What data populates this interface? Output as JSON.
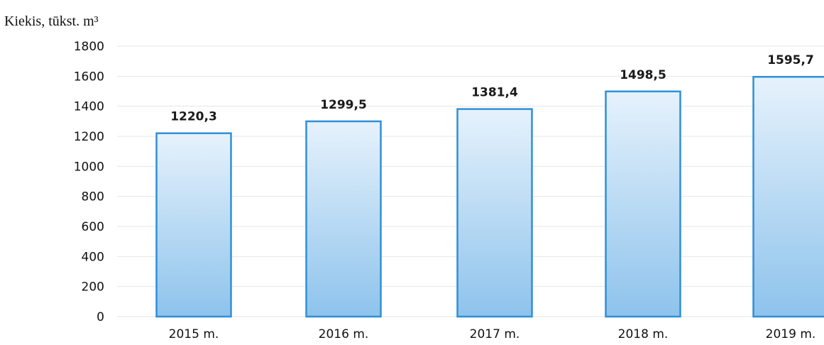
{
  "chart_data": {
    "type": "bar",
    "ylabel": "Kiekis, tūkst. m³",
    "xlabel": "",
    "categories": [
      "2015 m.",
      "2016 m.",
      "2017 m.",
      "2018 m.",
      "2019 m."
    ],
    "values": [
      1220.3,
      1299.5,
      1381.4,
      1498.5,
      1595.7
    ],
    "data_labels": [
      "1220,3",
      "1299,5",
      "1381,4",
      "1498,5",
      "1595,7"
    ],
    "yticks": [
      "0",
      "200",
      "400",
      "600",
      "800",
      "1000",
      "1200",
      "1400",
      "1600",
      "1800"
    ],
    "ylim": [
      0,
      1800
    ],
    "grid": true,
    "legend": "none",
    "colors": {
      "bar_top": "#e6f2fc",
      "bar_bottom": "#8ec3ec",
      "bar_outline": "#2f8fd8",
      "grid": "#e6e6e6"
    }
  }
}
